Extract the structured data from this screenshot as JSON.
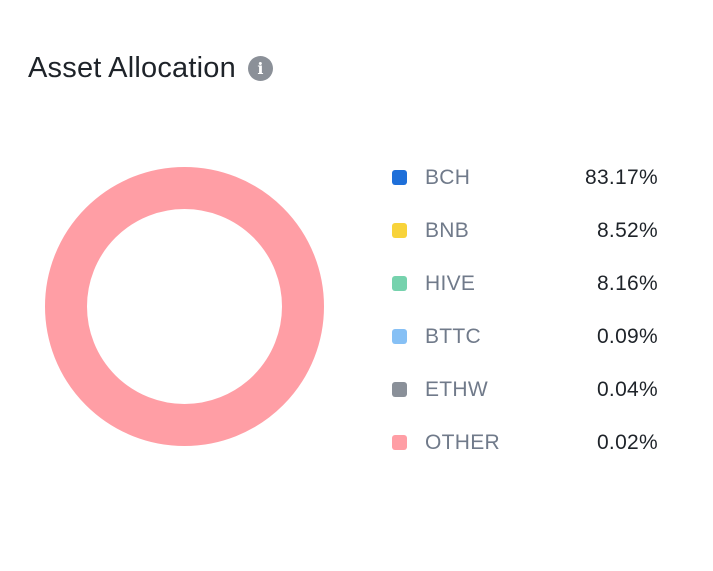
{
  "header": {
    "title": "Asset Allocation",
    "info_icon": "info-icon"
  },
  "chart_data": {
    "type": "pie",
    "style": "donut",
    "title": "Asset Allocation",
    "legend_placement": "right",
    "categories": [
      "BCH",
      "BNB",
      "HIVE",
      "BTTC",
      "ETHW",
      "OTHER"
    ],
    "values": [
      83.17,
      8.52,
      8.16,
      0.09,
      0.04,
      0.02
    ],
    "labels": [
      "83.17%",
      "8.52%",
      "8.16%",
      "0.09%",
      "0.04%",
      "0.02%"
    ],
    "colors": [
      "#1e6fd9",
      "#f8d33a",
      "#76d2ad",
      "#86c0f5",
      "#8a9099",
      "#ff9ea5"
    ],
    "rendered_fill": "#ff9ea5"
  }
}
